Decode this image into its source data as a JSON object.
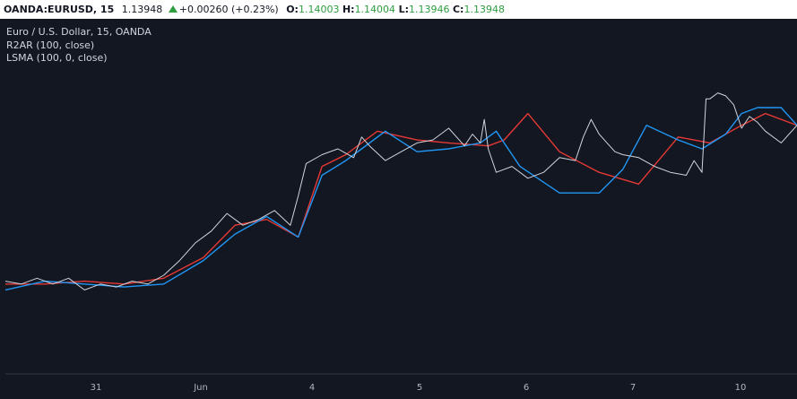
{
  "header": {
    "symbol": "OANDA:EURUSD, 15",
    "last": "1.13948",
    "change": "+0.00260 (+0.23%)",
    "o_label": "O:",
    "o_value": "1.14003",
    "h_label": "H:",
    "h_value": "1.14004",
    "l_label": "L:",
    "l_value": "1.13946",
    "c_label": "C:",
    "c_value": "1.13948"
  },
  "legend": {
    "title": "Euro / U.S. Dollar, 15, OANDA",
    "ind1": "R2AR (100, close)",
    "ind2": "LSMA (100, 0, close)"
  },
  "colors": {
    "background": "#131722",
    "price": "#d1d4dc",
    "r2ar": "#e53935",
    "lsma": "#2196f3",
    "up": "#2e9e40"
  },
  "chart_data": {
    "type": "line",
    "x_ticks": [
      "31",
      "Jun",
      "4",
      "5",
      "6",
      "7",
      "10"
    ],
    "y_range": [
      0,
      100
    ],
    "series": [
      {
        "name": "R2AR (100, close)",
        "color": "#e53935",
        "x": [
          0,
          5,
          10,
          15,
          20,
          25,
          29,
          33,
          37,
          40,
          43,
          47,
          52,
          56,
          61,
          63,
          66,
          70,
          75,
          80,
          85,
          89,
          93,
          96,
          100
        ],
        "y": [
          22,
          22,
          23,
          22,
          24,
          31,
          42,
          44,
          38,
          62,
          66,
          74,
          71,
          70,
          69,
          71,
          80,
          67,
          60,
          56,
          72,
          70,
          76,
          80,
          76
        ]
      },
      {
        "name": "LSMA (100, 0, close)",
        "color": "#2196f3",
        "x": [
          0,
          5,
          10,
          15,
          20,
          25,
          29,
          33,
          37,
          40,
          43,
          45,
          48,
          52,
          56,
          60,
          62,
          65,
          70,
          75,
          78,
          81,
          85,
          88,
          91,
          93,
          95,
          98,
          100
        ],
        "y": [
          20,
          23,
          22,
          21,
          22,
          30,
          39,
          45,
          38,
          59,
          64,
          68,
          74,
          67,
          68,
          70,
          74,
          62,
          53,
          53,
          61,
          76,
          71,
          68,
          73,
          80,
          82,
          82,
          76
        ]
      },
      {
        "name": "EURUSD",
        "color": "#d1d4dc",
        "x": [
          0,
          2,
          4,
          6,
          8,
          10,
          12,
          14,
          16,
          18,
          20,
          22,
          24,
          26,
          28,
          30,
          32,
          34,
          36,
          37,
          38,
          40,
          42,
          44,
          45,
          46,
          48,
          50,
          52,
          54,
          56,
          58,
          59,
          60,
          60.5,
          61,
          62,
          64,
          66,
          68,
          70,
          72,
          73,
          74,
          75,
          76,
          77,
          78,
          80,
          82,
          84,
          86,
          87,
          88,
          88.5,
          89,
          90,
          91,
          92,
          93,
          94,
          95,
          96,
          98,
          100
        ],
        "y": [
          23,
          22,
          24,
          22,
          24,
          20,
          22,
          21,
          23,
          22,
          25,
          30,
          36,
          40,
          46,
          42,
          44,
          47,
          42,
          52,
          63,
          66,
          68,
          65,
          72,
          69,
          64,
          67,
          70,
          71,
          75,
          69,
          73,
          70,
          78,
          68,
          60,
          62,
          58,
          60,
          65,
          64,
          72,
          78,
          73,
          70,
          67,
          66,
          65,
          62,
          60,
          59,
          64,
          60,
          85,
          85,
          87,
          86,
          83,
          75,
          79,
          77,
          74,
          70,
          76
        ]
      }
    ]
  }
}
